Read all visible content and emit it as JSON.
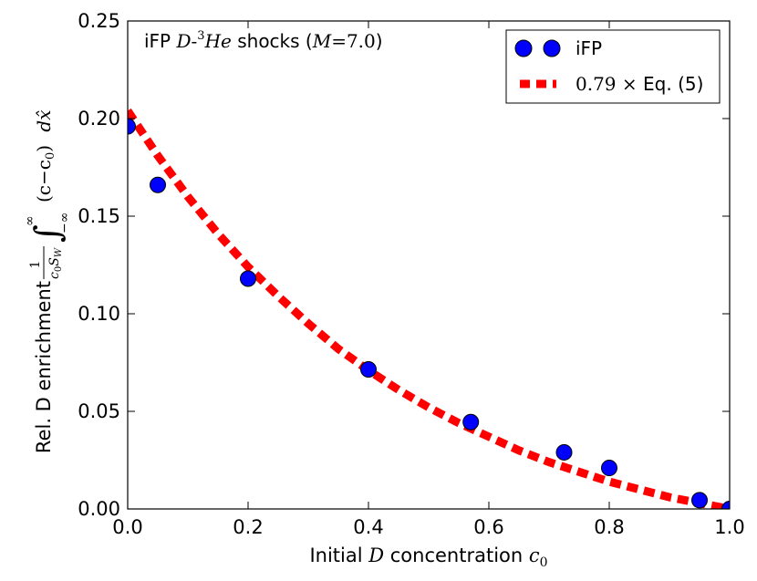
{
  "chart_data": {
    "type": "scatter",
    "title_parts": {
      "prefix": "iFP ",
      "species_a": "D",
      "dash": "-",
      "mass_sup": "3",
      "species_b": "He",
      "middle": " shocks (",
      "mach_symbol": "M",
      "mach_eq": "=7.0",
      "suffix": ")"
    },
    "xlabel_parts": {
      "prefix": "Initial ",
      "symbol": "D",
      "middle": " concentration ",
      "c": "c",
      "sub": "0"
    },
    "ylabel_parts": {
      "prefix": "Rel. D enrichment ",
      "frac_num": "1",
      "frac_den": "c",
      "frac_den_sub": "0",
      "frac_den_s": "S",
      "frac_den_s_sub": "W",
      "integral": "∫",
      "int_upper": "∞",
      "int_lower": "−∞",
      "integrand": "(c−c",
      "integrand_sub": "0",
      "integrand_end": ")",
      "dx": "dx̂"
    },
    "xlim": [
      0.0,
      1.0
    ],
    "ylim": [
      0.0,
      0.25
    ],
    "xticks": [
      0.0,
      0.2,
      0.4,
      0.6,
      0.8,
      1.0
    ],
    "xtick_labels": [
      "0.0",
      "0.2",
      "0.4",
      "0.6",
      "0.8",
      "1.0"
    ],
    "yticks": [
      0.0,
      0.05,
      0.1,
      0.15,
      0.2,
      0.25
    ],
    "ytick_labels": [
      "0.00",
      "0.05",
      "0.10",
      "0.15",
      "0.20",
      "0.25"
    ],
    "grid": false,
    "legend_position": "top-right",
    "series": [
      {
        "name": "iFP",
        "kind": "markers",
        "color": "#0000ff",
        "x": [
          0.0,
          0.05,
          0.2,
          0.4,
          0.57,
          0.725,
          0.8,
          0.95,
          1.0
        ],
        "y": [
          0.196,
          0.166,
          0.118,
          0.0715,
          0.0445,
          0.029,
          0.021,
          0.0045,
          0.0
        ]
      },
      {
        "name_parts": {
          "factor": "0.79",
          "times": " × ",
          "text": "Eq. (5)"
        },
        "kind": "dashed-curve",
        "color": "#ff0000",
        "x": [
          0.0,
          0.05,
          0.1,
          0.15,
          0.2,
          0.25,
          0.3,
          0.35,
          0.4,
          0.45,
          0.5,
          0.55,
          0.6,
          0.65,
          0.7,
          0.75,
          0.8,
          0.85,
          0.9,
          0.95,
          1.0
        ],
        "y": [
          0.204,
          0.181,
          0.16,
          0.141,
          0.124,
          0.109,
          0.095,
          0.082,
          0.071,
          0.061,
          0.052,
          0.044,
          0.037,
          0.03,
          0.024,
          0.019,
          0.014,
          0.01,
          0.006,
          0.003,
          0.0
        ]
      }
    ]
  }
}
